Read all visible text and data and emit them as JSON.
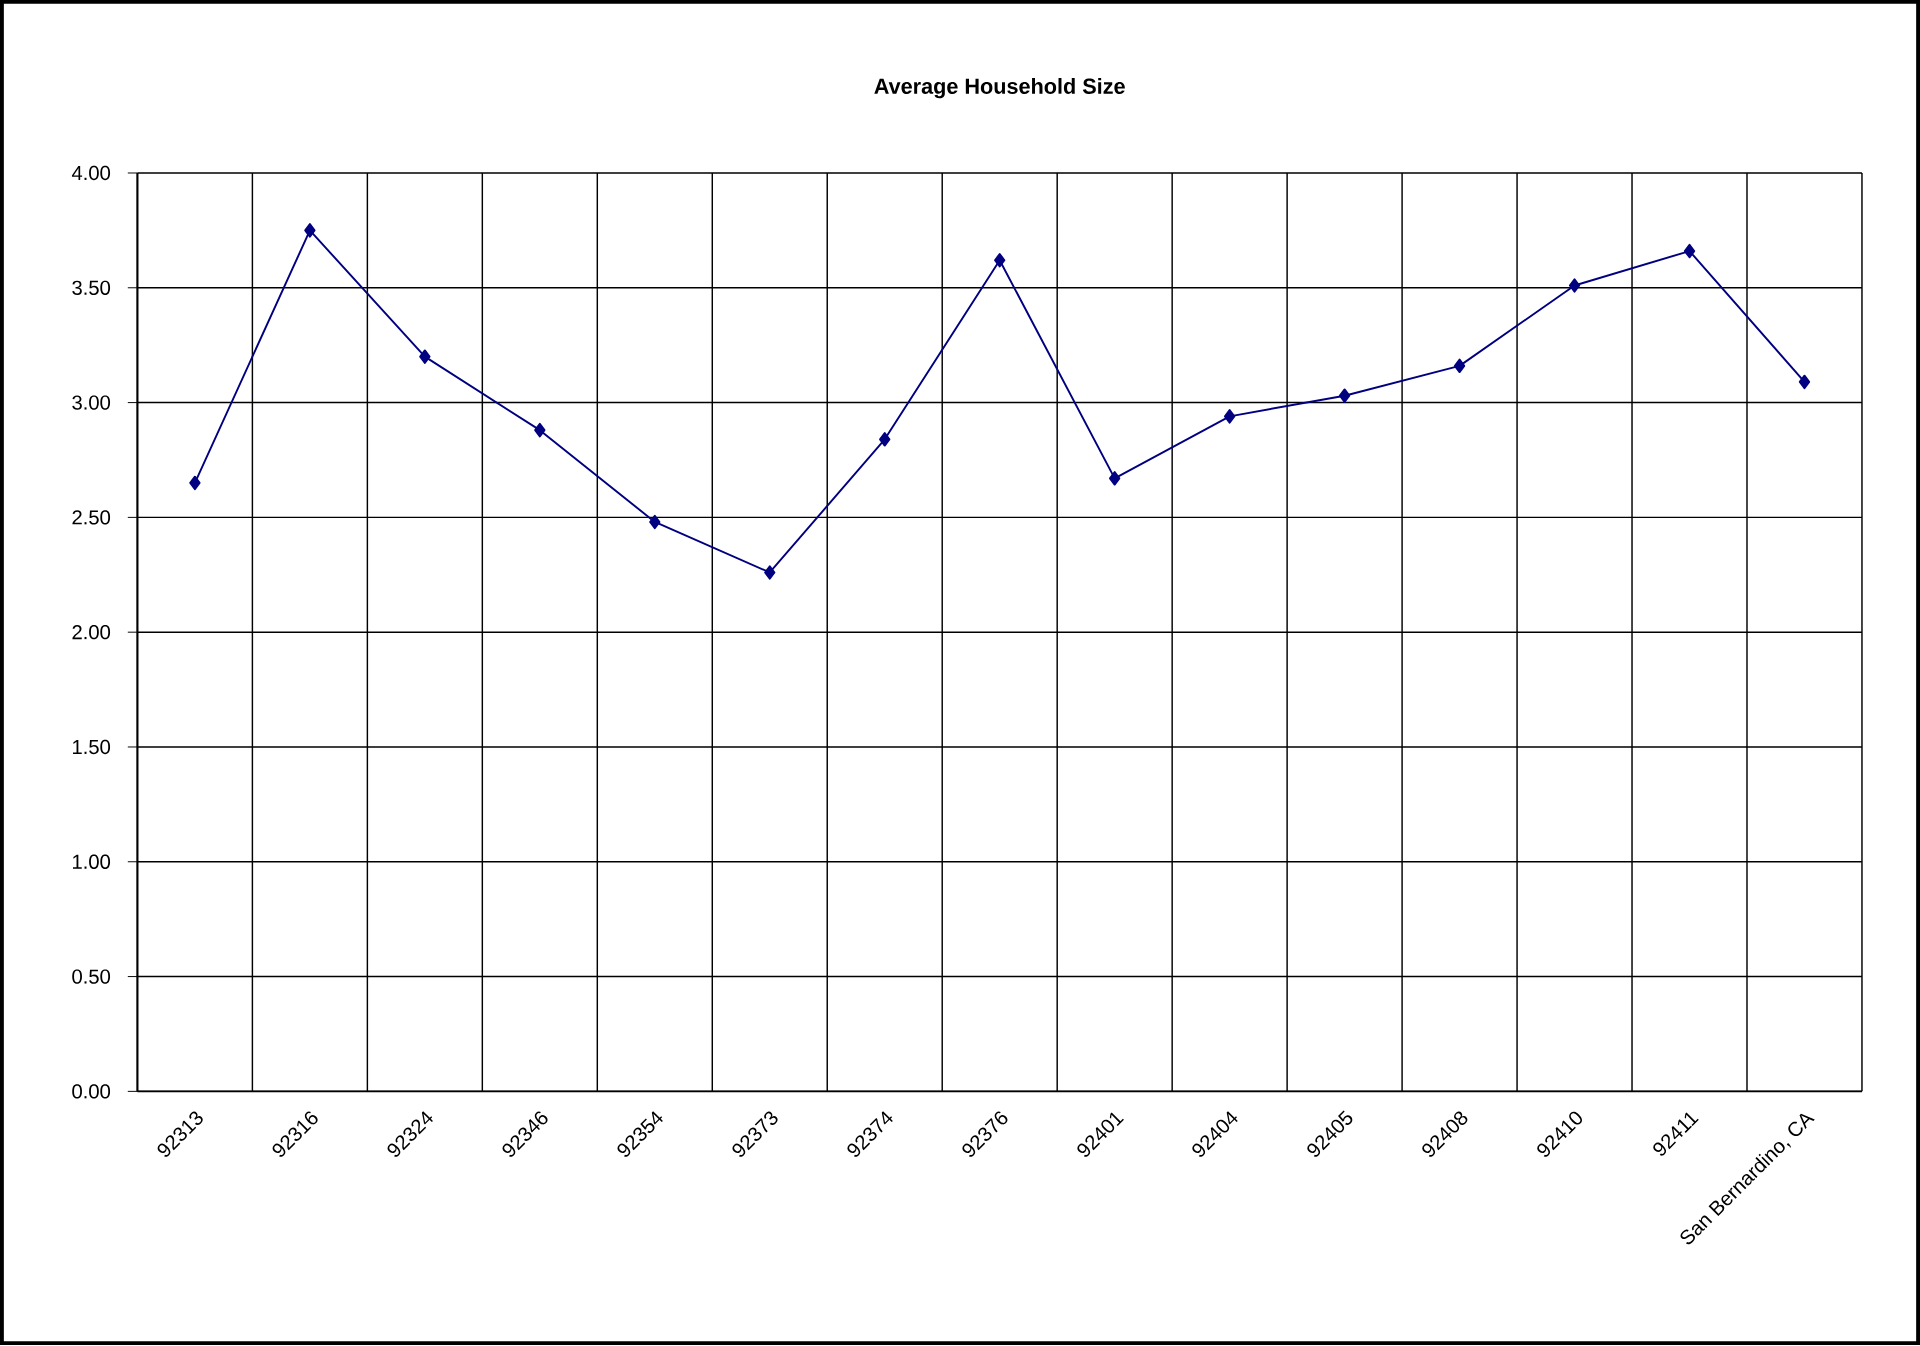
{
  "chart_data": {
    "type": "line",
    "title": "Average Household Size",
    "categories": [
      "92313",
      "92316",
      "92324",
      "92346",
      "92354",
      "92373",
      "92374",
      "92376",
      "92401",
      "92404",
      "92405",
      "92408",
      "92410",
      "92411",
      "San Bernardino, CA"
    ],
    "series": [
      {
        "color": "#000080",
        "values": [
          2.65,
          3.75,
          3.2,
          2.88,
          2.48,
          2.26,
          2.84,
          3.62,
          2.67,
          2.94,
          3.03,
          3.16,
          3.51,
          3.66,
          3.09
        ]
      }
    ],
    "ylim": [
      0,
      4
    ],
    "yticks": [
      {
        "value": 0,
        "label": "0.00"
      },
      {
        "value": 0.5,
        "label": "0.50"
      },
      {
        "value": 1,
        "label": "1.00"
      },
      {
        "value": 1.5,
        "label": "1.50"
      },
      {
        "value": 2,
        "label": "2.00"
      },
      {
        "value": 2.5,
        "label": "2.50"
      },
      {
        "value": 3,
        "label": "3.00"
      },
      {
        "value": 3.5,
        "label": "3.50"
      },
      {
        "value": 4,
        "label": "4.00"
      }
    ],
    "grid": true,
    "marker": "diamond",
    "line_style": "solid"
  }
}
